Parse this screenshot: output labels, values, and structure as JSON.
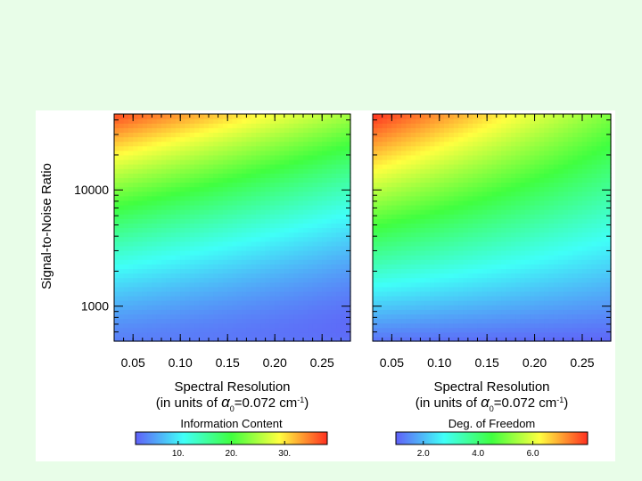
{
  "chart_data": [
    {
      "type": "heatmap",
      "title": "Information Content",
      "xlabel_line1": "Spectral Resolution",
      "xlabel_line2_prefix": "(in units of ",
      "xlabel_symbol": "α",
      "xlabel_subscript": "0",
      "xlabel_value": "=0.072 cm",
      "xlabel_superscript": "-1",
      "xlabel_suffix": ")",
      "ylabel": "Signal-to-Noise Ratio",
      "xlim": [
        0.03,
        0.28
      ],
      "ylim": [
        500,
        45000
      ],
      "yscale": "log",
      "x_ticks": [
        0.05,
        0.1,
        0.15,
        0.2,
        0.25
      ],
      "x_tick_labels": [
        "0.05",
        "0.10",
        "0.15",
        "0.20",
        "0.25"
      ],
      "y_ticks": [
        1000,
        10000
      ],
      "y_tick_labels": [
        "1000",
        "10000"
      ],
      "colorbar": {
        "label": "Information Content",
        "range": [
          2,
          38
        ],
        "ticks": [
          10,
          20,
          30
        ],
        "tick_labels": [
          "10.",
          "20.",
          "30."
        ]
      },
      "approx_values": [
        {
          "x": 0.03,
          "y": 45000,
          "value": 36
        },
        {
          "x": 0.03,
          "y": 10000,
          "value": 25
        },
        {
          "x": 0.03,
          "y": 1000,
          "value": 10
        },
        {
          "x": 0.28,
          "y": 45000,
          "value": 20
        },
        {
          "x": 0.28,
          "y": 10000,
          "value": 13
        },
        {
          "x": 0.28,
          "y": 500,
          "value": 3
        }
      ]
    },
    {
      "type": "heatmap",
      "title": "Deg. of Freedom",
      "xlabel_line1": "Spectral Resolution",
      "xlabel_line2_prefix": "(in units of ",
      "xlabel_symbol": "α",
      "xlabel_subscript": "0",
      "xlabel_value": "=0.072 cm",
      "xlabel_superscript": "-1",
      "xlabel_suffix": ")",
      "xlim": [
        0.03,
        0.28
      ],
      "ylim": [
        500,
        45000
      ],
      "yscale": "log",
      "x_ticks": [
        0.05,
        0.1,
        0.15,
        0.2,
        0.25
      ],
      "x_tick_labels": [
        "0.05",
        "0.10",
        "0.15",
        "0.20",
        "0.25"
      ],
      "y_ticks": [
        1000,
        10000
      ],
      "colorbar": {
        "label": "Deg. of Freedom",
        "range": [
          1.0,
          8.0
        ],
        "ticks": [
          2.0,
          4.0,
          6.0
        ],
        "tick_labels": [
          "2.0",
          "4.0",
          "6.0"
        ]
      },
      "approx_values": [
        {
          "x": 0.03,
          "y": 45000,
          "value": 7.6
        },
        {
          "x": 0.03,
          "y": 10000,
          "value": 4.8
        },
        {
          "x": 0.03,
          "y": 1000,
          "value": 2.6
        },
        {
          "x": 0.28,
          "y": 45000,
          "value": 4.4
        },
        {
          "x": 0.28,
          "y": 10000,
          "value": 3.0
        },
        {
          "x": 0.28,
          "y": 500,
          "value": 1.2
        }
      ]
    }
  ],
  "colors": {
    "page_background": "#e8fde8",
    "figure_background": "#ffffff",
    "colormap": [
      "#6060f8",
      "#40fff8",
      "#40ff40",
      "#ffff40",
      "#ff3020"
    ]
  }
}
